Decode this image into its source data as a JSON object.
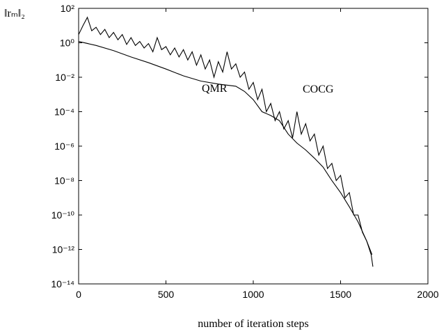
{
  "chart_data": {
    "type": "line",
    "x_label": "number of iteration steps",
    "y_label": "‖rₘ‖₂",
    "log_y": true,
    "xlim": [
      0,
      2000
    ],
    "xticks": [
      0,
      500,
      1000,
      1500,
      2000
    ],
    "ylim": [
      1e-14,
      100
    ],
    "yticks": [
      {
        "value": 1e-14,
        "label": "10⁻¹⁴"
      },
      {
        "value": 1e-12,
        "label": "10⁻¹²"
      },
      {
        "value": 1e-10,
        "label": "10⁻¹⁰"
      },
      {
        "value": 1e-08,
        "label": "10⁻⁸"
      },
      {
        "value": 1e-06,
        "label": "10⁻⁶"
      },
      {
        "value": 0.0001,
        "label": "10⁻⁴"
      },
      {
        "value": 0.01,
        "label": "10⁻²"
      },
      {
        "value": 1,
        "label": "10⁰"
      },
      {
        "value": 100,
        "label": "10²"
      }
    ],
    "series": [
      {
        "name": "COCG",
        "color": "#000000",
        "x": [
          0,
          25,
          50,
          75,
          100,
          125,
          150,
          175,
          200,
          225,
          250,
          275,
          300,
          325,
          350,
          375,
          400,
          425,
          450,
          475,
          500,
          525,
          550,
          575,
          600,
          625,
          650,
          675,
          700,
          725,
          750,
          775,
          800,
          825,
          850,
          875,
          900,
          925,
          950,
          975,
          1000,
          1025,
          1050,
          1075,
          1100,
          1125,
          1150,
          1175,
          1200,
          1225,
          1250,
          1275,
          1300,
          1325,
          1350,
          1375,
          1400,
          1425,
          1450,
          1475,
          1500,
          1525,
          1550,
          1575,
          1600,
          1625,
          1650,
          1675,
          1685
        ],
        "values": [
          3,
          10,
          30,
          5,
          8,
          3,
          6,
          2,
          4,
          1.5,
          3,
          0.8,
          2,
          0.7,
          1.2,
          0.5,
          0.9,
          0.3,
          2,
          0.4,
          0.6,
          0.2,
          0.5,
          0.15,
          0.4,
          0.1,
          0.3,
          0.05,
          0.2,
          0.03,
          0.1,
          0.01,
          0.08,
          0.02,
          0.3,
          0.03,
          0.06,
          0.01,
          0.02,
          0.002,
          0.005,
          0.0005,
          0.002,
          0.0001,
          0.0003,
          3e-05,
          0.0001,
          1e-05,
          3e-05,
          3e-06,
          0.0001,
          5e-06,
          2e-05,
          2e-06,
          5e-06,
          3e-07,
          1e-06,
          5e-08,
          1e-07,
          1e-08,
          2e-08,
          1e-09,
          2e-09,
          1e-10,
          1e-10,
          1e-11,
          3e-12,
          5e-13,
          1e-13
        ]
      },
      {
        "name": "QMR",
        "color": "#000000",
        "x": [
          0,
          100,
          200,
          300,
          400,
          500,
          600,
          700,
          800,
          900,
          950,
          1000,
          1050,
          1100,
          1150,
          1200,
          1250,
          1300,
          1350,
          1400,
          1450,
          1500,
          1550,
          1600,
          1650,
          1680
        ],
        "values": [
          1.2,
          0.7,
          0.35,
          0.15,
          0.07,
          0.03,
          0.012,
          0.006,
          0.004,
          0.003,
          0.0015,
          0.0005,
          0.0001,
          6e-05,
          3e-05,
          5e-06,
          1.5e-06,
          6e-07,
          2e-07,
          6e-08,
          1e-08,
          2e-09,
          3e-10,
          4e-11,
          3e-12,
          5e-13
        ]
      }
    ]
  }
}
